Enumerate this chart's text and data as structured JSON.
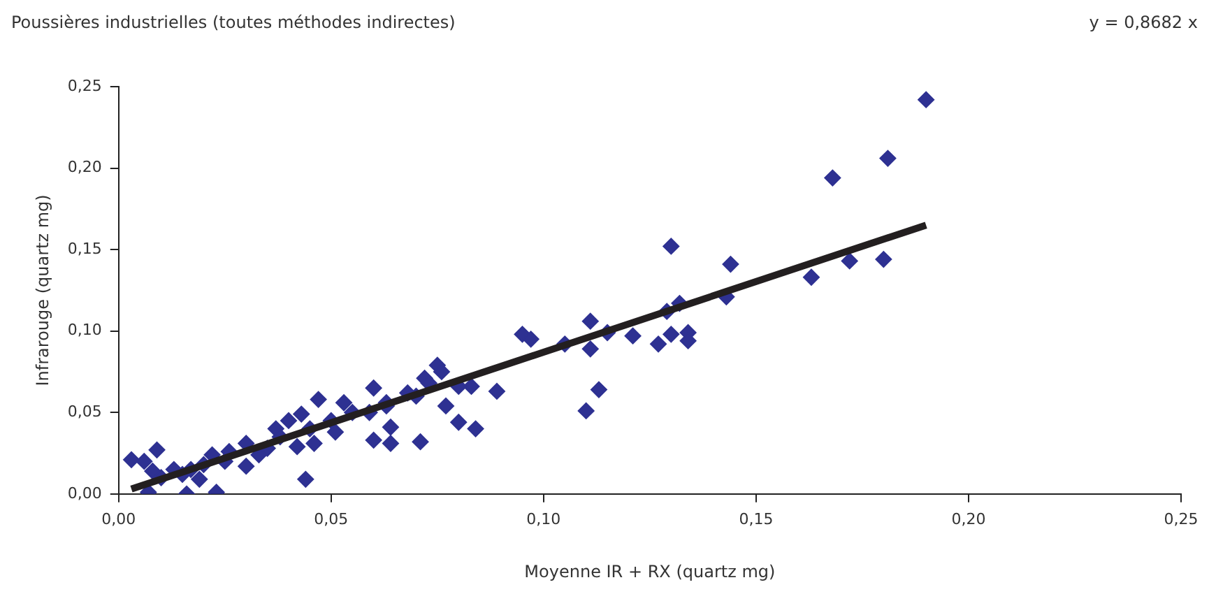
{
  "chart_data": {
    "type": "scatter",
    "title": "Poussières industrielles (toutes méthodes indirectes)",
    "annotations": [
      "y = 0,8682 x"
    ],
    "xlabel": "Moyenne IR + RX (quartz mg)",
    "ylabel": "Infrarouge (quartz mg)",
    "xlim": [
      0,
      0.25
    ],
    "ylim": [
      0,
      0.25
    ],
    "xticks": [
      {
        "value": 0,
        "label": "0,00"
      },
      {
        "value": 0.05,
        "label": "0,05"
      },
      {
        "value": 0.1,
        "label": "0,10"
      },
      {
        "value": 0.15,
        "label": "0,15"
      },
      {
        "value": 0.2,
        "label": "0,20"
      },
      {
        "value": 0.25,
        "label": "0,25"
      }
    ],
    "yticks": [
      {
        "value": 0,
        "label": "0,00"
      },
      {
        "value": 0.05,
        "label": "0,05"
      },
      {
        "value": 0.1,
        "label": "0,10"
      },
      {
        "value": 0.15,
        "label": "0,15"
      },
      {
        "value": 0.2,
        "label": "0,20"
      },
      {
        "value": 0.25,
        "label": "0,25"
      }
    ],
    "grid": false,
    "legend": false,
    "marker": "diamond",
    "series": [
      {
        "type": "scatter",
        "color": "#2e3192",
        "x": [
          0.003,
          0.006,
          0.009,
          0.007,
          0.008,
          0.013,
          0.017,
          0.016,
          0.023,
          0.019,
          0.022,
          0.026,
          0.03,
          0.03,
          0.033,
          0.037,
          0.04,
          0.043,
          0.044,
          0.047,
          0.053,
          0.042,
          0.046,
          0.051,
          0.06,
          0.06,
          0.063,
          0.095,
          0.111,
          0.111,
          0.115,
          0.121,
          0.113,
          0.11,
          0.105,
          0.097,
          0.089,
          0.083,
          0.08,
          0.075,
          0.072,
          0.077,
          0.08,
          0.084,
          0.07,
          0.071,
          0.064,
          0.064,
          0.063,
          0.059,
          0.19,
          0.181,
          0.168,
          0.13,
          0.144,
          0.172,
          0.18,
          0.163,
          0.143,
          0.132,
          0.129,
          0.13,
          0.134,
          0.134,
          0.127,
          0.01,
          0.015,
          0.02,
          0.025,
          0.035,
          0.038,
          0.045,
          0.05,
          0.055,
          0.068,
          0.073,
          0.076
        ],
        "values": [
          0.021,
          0.02,
          0.027,
          0.001,
          0.014,
          0.015,
          0.015,
          0,
          0.001,
          0.009,
          0.024,
          0.026,
          0.031,
          0.017,
          0.024,
          0.04,
          0.045,
          0.049,
          0.009,
          0.058,
          0.056,
          0.029,
          0.031,
          0.038,
          0.065,
          0.033,
          0.056,
          0.098,
          0.106,
          0.089,
          0.099,
          0.097,
          0.064,
          0.051,
          0.092,
          0.095,
          0.063,
          0.066,
          0.066,
          0.079,
          0.071,
          0.054,
          0.044,
          0.04,
          0.06,
          0.032,
          0.031,
          0.041,
          0.054,
          0.05,
          0.242,
          0.206,
          0.194,
          0.152,
          0.141,
          0.143,
          0.144,
          0.133,
          0.121,
          0.117,
          0.112,
          0.098,
          0.099,
          0.094,
          0.092,
          0.01,
          0.012,
          0.018,
          0.02,
          0.028,
          0.035,
          0.04,
          0.045,
          0.05,
          0.062,
          0.068,
          0.075
        ]
      },
      {
        "type": "line",
        "color": "#231f20",
        "marker": "none",
        "line_style": "solid",
        "x": [
          0.003,
          0.19
        ],
        "values": [
          0.003,
          0.165
        ]
      }
    ]
  }
}
